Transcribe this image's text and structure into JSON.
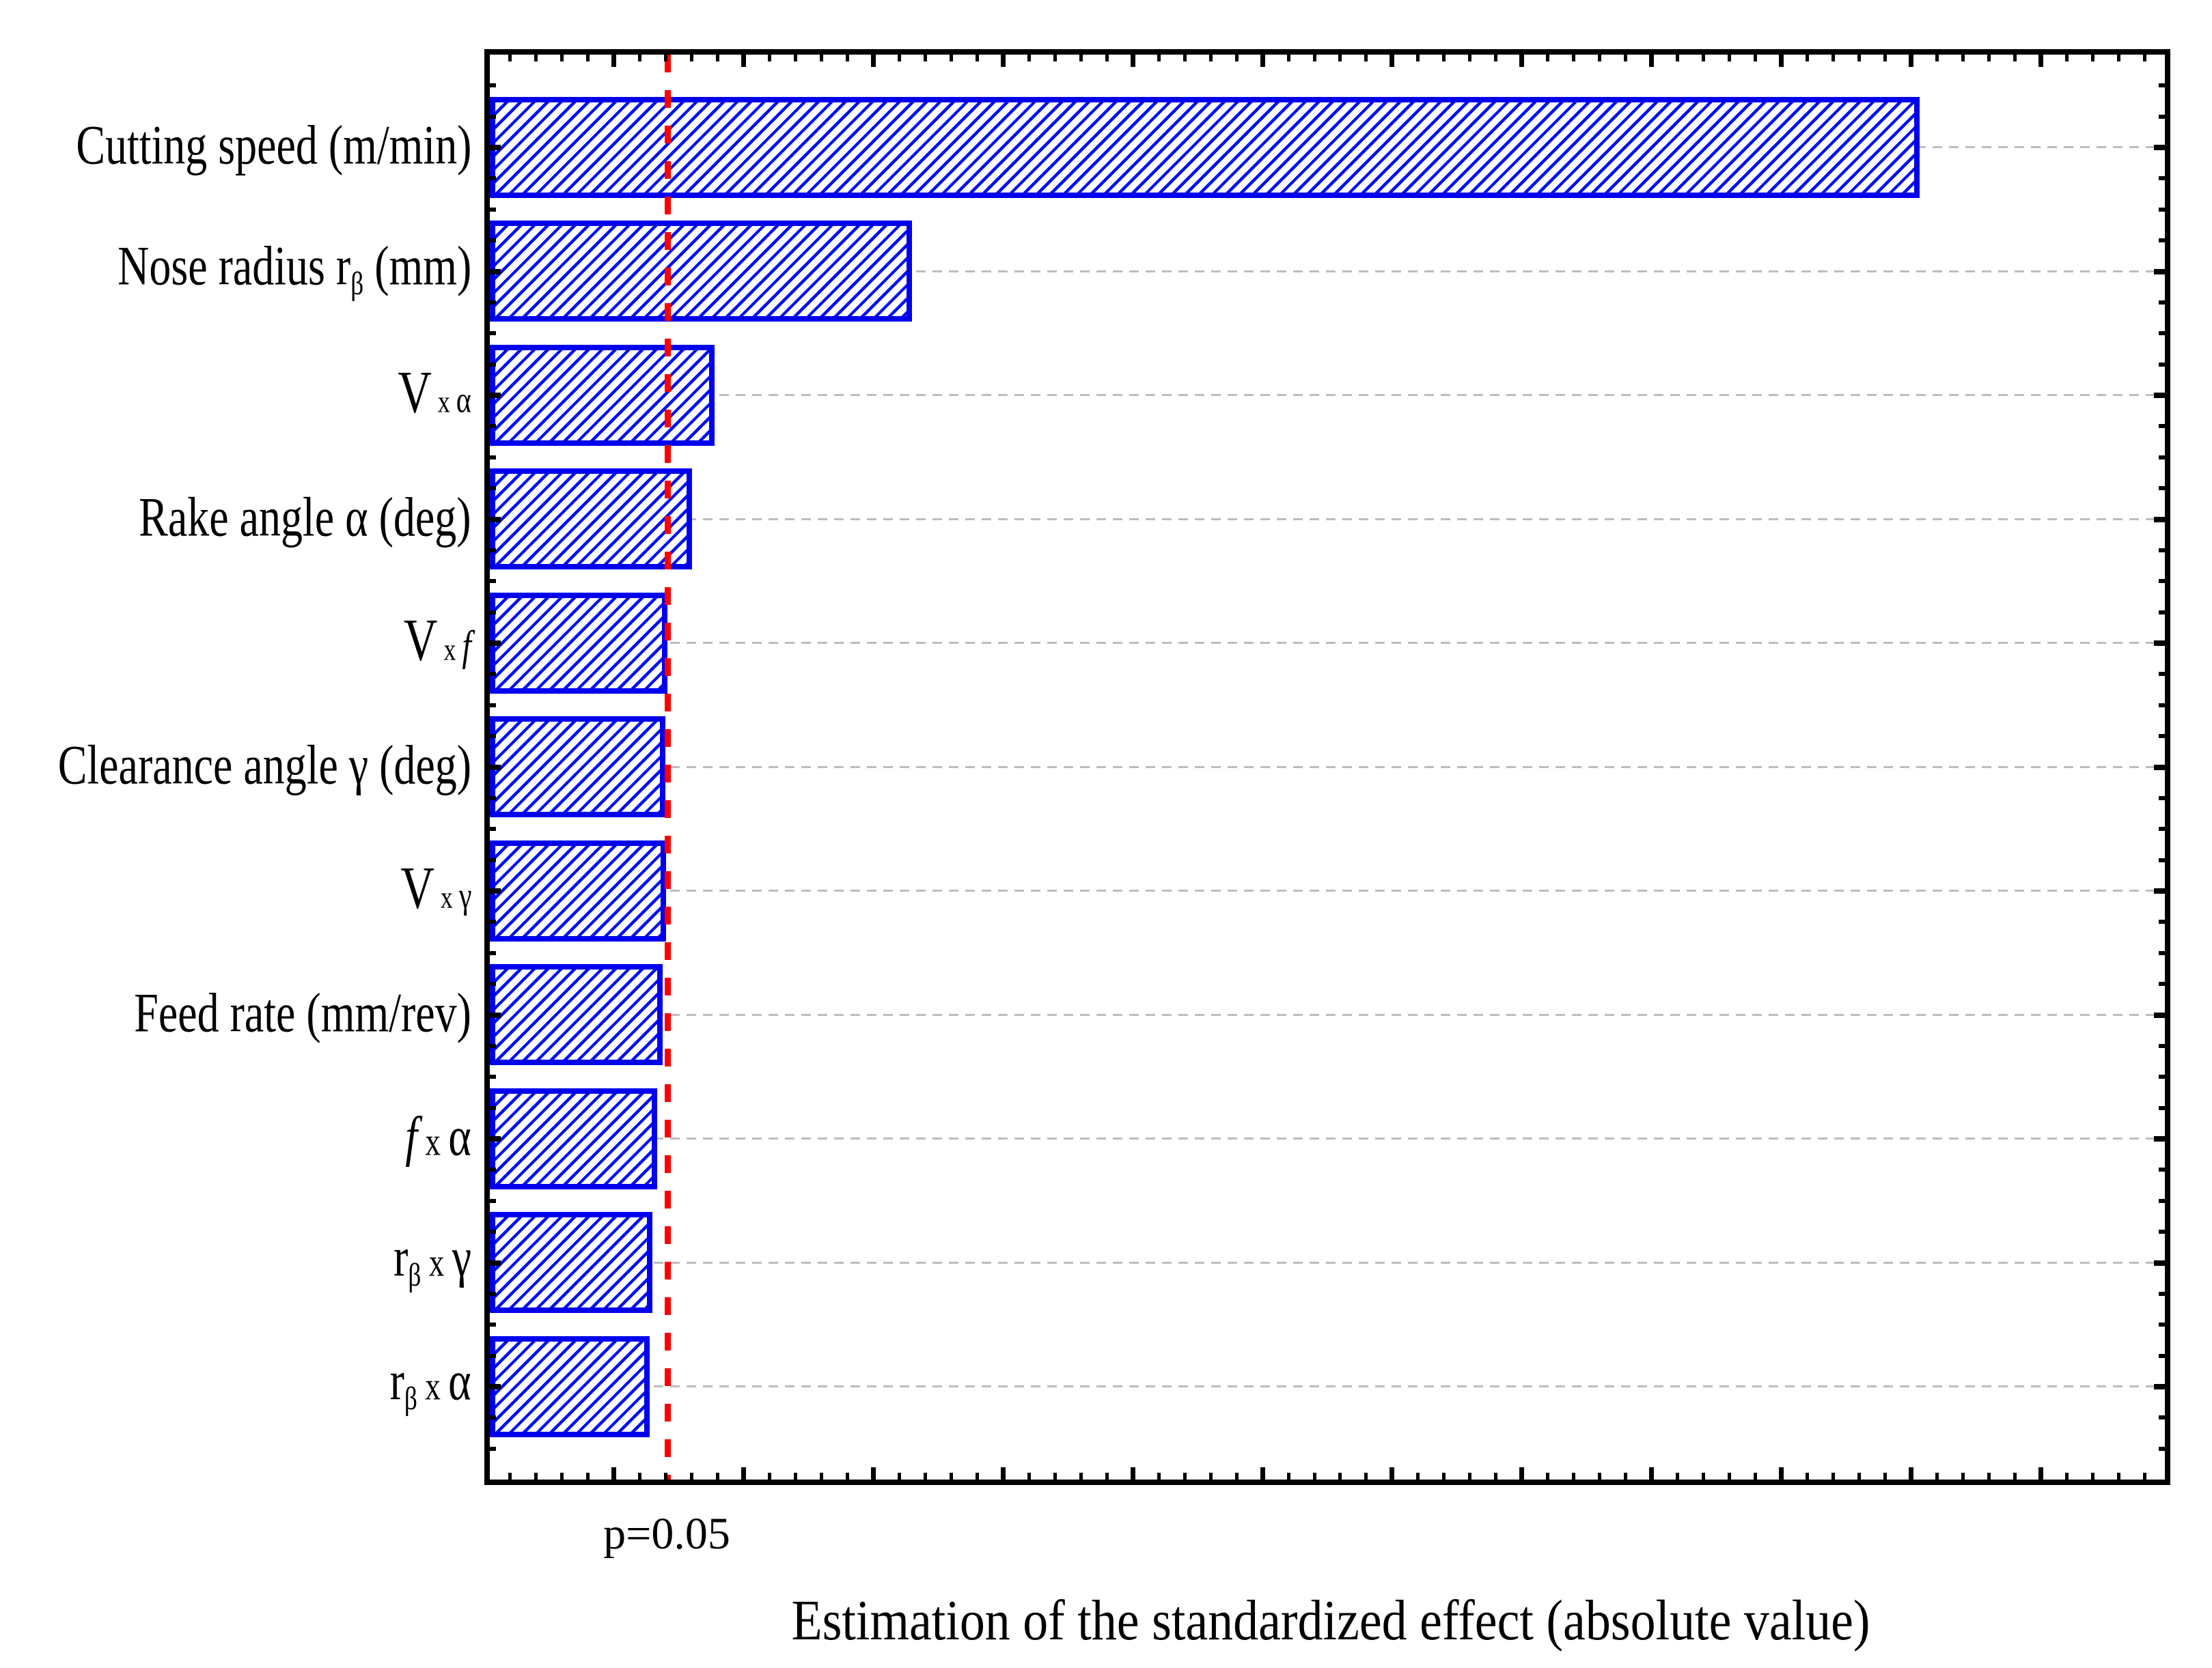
{
  "chart_data": {
    "type": "bar",
    "subtype": "pareto-of-standardized-effects",
    "orientation": "horizontal",
    "title": "",
    "xlabel": "Estimation of the standardized effect (absolute value)",
    "ylabel": "",
    "categories": [
      "Cutting speed (m/min)",
      "Nose radius rβ (mm)",
      "V x α",
      "Rake angle α (deg)",
      "V x f",
      "Clearance angle γ (deg)",
      "V x γ",
      "Feed rate (mm/rev)",
      "f x α",
      "rβ x γ",
      "rβ x α"
    ],
    "label_segments": [
      [
        {
          "t": "Cutting speed (m/min)",
          "s": "n"
        }
      ],
      [
        {
          "t": "Nose radius r",
          "s": "n"
        },
        {
          "t": "β",
          "s": "sub"
        },
        {
          "t": " (mm)",
          "s": "n"
        }
      ],
      [
        {
          "t": "V",
          "s": "big"
        },
        {
          "t": " x ",
          "s": "xs"
        },
        {
          "t": "α",
          "s": "sym"
        }
      ],
      [
        {
          "t": "Rake angle α (deg)",
          "s": "n"
        }
      ],
      [
        {
          "t": "V",
          "s": "big"
        },
        {
          "t": " x ",
          "s": "xs"
        },
        {
          "t": "f",
          "s": "symit"
        }
      ],
      [
        {
          "t": "Clearance angle γ (deg)",
          "s": "n"
        }
      ],
      [
        {
          "t": "V",
          "s": "big"
        },
        {
          "t": " x ",
          "s": "xs"
        },
        {
          "t": "γ",
          "s": "sym"
        }
      ],
      [
        {
          "t": "Feed rate (mm/rev)",
          "s": "n"
        }
      ],
      [
        {
          "t": "f",
          "s": "it"
        },
        {
          "t": " x ",
          "s": "xm"
        },
        {
          "t": "α",
          "s": "n"
        }
      ],
      [
        {
          "t": "r",
          "s": "n"
        },
        {
          "t": "β",
          "s": "sub"
        },
        {
          "t": " x ",
          "s": "xm"
        },
        {
          "t": "γ",
          "s": "n"
        }
      ],
      [
        {
          "t": "r",
          "s": "n"
        },
        {
          "t": "β",
          "s": "sub"
        },
        {
          "t": " x ",
          "s": "xm"
        },
        {
          "t": "α",
          "s": "n"
        }
      ]
    ],
    "values_fraction_of_axis": [
      0.8536,
      0.2521,
      0.1342,
      0.1207,
      0.106,
      0.1048,
      0.1052,
      0.1032,
      0.0999,
      0.0971,
      0.0954
    ],
    "values_estimated_t": [
      17.0,
      5.0,
      2.67,
      2.4,
      2.11,
      2.09,
      2.1,
      2.05,
      1.99,
      1.93,
      1.9
    ],
    "significance_line": {
      "label": "p=0.05",
      "fraction_of_axis": 0.1065,
      "estimated_t": 2.12,
      "color": "#FF0000",
      "style": "dashed-vertical"
    },
    "x_axis": {
      "label": "Estimation of the standardized effect (absolute value)",
      "numeric_tick_labels_shown": false,
      "major_divisions": 13,
      "minor_ticks_per_major": 5,
      "range_fraction": [
        0,
        1
      ]
    },
    "y_axis": {
      "tick_labels_position": "left",
      "minor_subdivisions_per_category": 4
    },
    "legend_shown": false,
    "gridlines": "horizontal light-gray dashed at each category center",
    "bar_style": {
      "fill": "diagonal hatch /",
      "hatch_color": "#0010F0",
      "border_color": "#0000EE",
      "background": "#FFFFFF"
    },
    "frame": "full box with inward ticks on all four sides",
    "colors": {
      "axis": "#000000",
      "grid": "#BDBDBD",
      "significance": "#FF0000",
      "background": "#FFFFFF",
      "text": "#000000"
    }
  }
}
